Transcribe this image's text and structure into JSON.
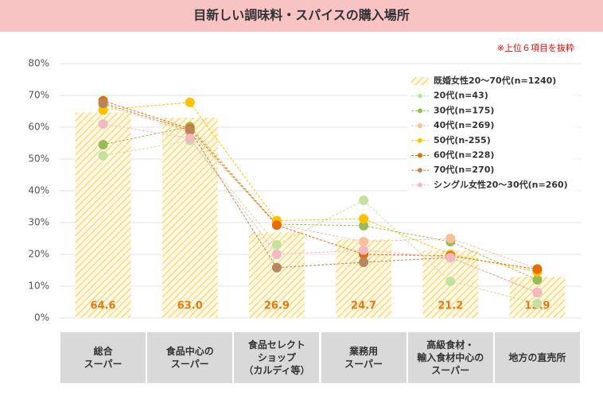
{
  "chart_data": {
    "type": "bar",
    "title": "目新しい調味料・スパイスの購入場所",
    "note": "※上位６項目を抜粋",
    "categories": [
      "総合\nスーパー",
      "食品中心の\nスーパー",
      "食品セレクト\nショップ\n（カルディ等）",
      "業務用\nスーパー",
      "高級食材・\n輸入食材中心の\nスーパー",
      "地方の直売所"
    ],
    "ylim": [
      0,
      80
    ],
    "yticks": [
      {
        "value": 0,
        "label": "0%"
      },
      {
        "value": 10,
        "label": "10%"
      },
      {
        "value": 20,
        "label": "20%"
      },
      {
        "value": 30,
        "label": "30%"
      },
      {
        "value": 40,
        "label": "40%"
      },
      {
        "value": 50,
        "label": "50%"
      },
      {
        "value": 60,
        "label": "60%"
      },
      {
        "value": 70,
        "label": "70%"
      },
      {
        "value": 80,
        "label": "80%"
      }
    ],
    "grid": true,
    "series": [
      {
        "name": "既婚女性20～70代(n=1240)",
        "type": "bar",
        "color": "#f5d98b",
        "values": [
          64.6,
          63.0,
          26.9,
          24.7,
          21.2,
          12.9
        ],
        "value_labels": [
          "64.6",
          "63.0",
          "26.9",
          "24.7",
          "21.2",
          "12.9"
        ]
      },
      {
        "name": "20代(n=43)",
        "type": "line",
        "color": "#c4e29f",
        "values": [
          51,
          55.8,
          23,
          37,
          11.5,
          4.5
        ]
      },
      {
        "name": "30代(n=175)",
        "type": "line",
        "color": "#9bbb59",
        "values": [
          54.5,
          60.2,
          29.5,
          29,
          24,
          12
        ]
      },
      {
        "name": "40代(n=269)",
        "type": "line",
        "color": "#f8c09a",
        "values": [
          67,
          58.5,
          29.5,
          24,
          25,
          15.5
        ]
      },
      {
        "name": "50代(n-255)",
        "type": "line",
        "color": "#ffc000",
        "values": [
          65.4,
          67.8,
          30.6,
          31.2,
          20,
          14.5
        ]
      },
      {
        "name": "60代(n=228)",
        "type": "line",
        "color": "#e46c0a",
        "values": [
          68.3,
          59.5,
          29.2,
          20,
          19.5,
          15.3
        ]
      },
      {
        "name": "70代(n=270)",
        "type": "line",
        "color": "#b7865c",
        "values": [
          67.5,
          59,
          15.8,
          17.5,
          19,
          8
        ]
      },
      {
        "name": "シングル女性20～30代(n=260)",
        "type": "line",
        "color": "#f4b8c0",
        "values": [
          61,
          56.5,
          20,
          21.3,
          19,
          8
        ]
      }
    ]
  }
}
